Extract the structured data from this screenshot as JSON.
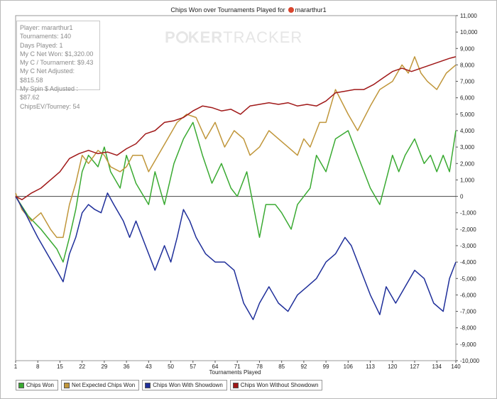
{
  "title": {
    "text": "Chips Won over Tournaments Played for",
    "player": "mararthur1"
  },
  "watermark": {
    "poker_p": "P",
    "poker_rest": "KER",
    "tracker": "TRACKER"
  },
  "info_box": [
    "Player: mararthur1",
    "Tournaments: 140",
    "Days Played: 1",
    "My C Net Won: $1,320.00",
    "My C / Tournament: $9.43",
    "My C Net Adjusted: $815.58",
    "My Spin $ Adjusted : $87.62",
    "ChipsEV/Tourney: 54"
  ],
  "colors": {
    "chips_won": "#3aaa32",
    "net_expected": "#c0963a",
    "with_showdown": "#1f2f9a",
    "without_showdown": "#a01818"
  },
  "chart_data": {
    "type": "line",
    "xlabel": "Tournaments Played",
    "ylabel": "",
    "xlim": [
      1,
      140
    ],
    "ylim": [
      -10000,
      11000
    ],
    "x_ticks": [
      1,
      8,
      15,
      22,
      29,
      36,
      43,
      50,
      57,
      64,
      71,
      78,
      85,
      92,
      99,
      106,
      113,
      120,
      127,
      134,
      140
    ],
    "y_ticks": [
      -10000,
      -9000,
      -8000,
      -7000,
      -6000,
      -5000,
      -4000,
      -3000,
      -2000,
      -1000,
      0,
      1000,
      2000,
      3000,
      4000,
      5000,
      6000,
      7000,
      8000,
      9000,
      10000,
      11000
    ],
    "y_tick_labels": [
      "-10,000",
      "-9,000",
      "-8,000",
      "-7,000",
      "-6,000",
      "-5,000",
      "-4,000",
      "-3,000",
      "-2,000",
      "-1,000",
      "0",
      "1,000",
      "2,000",
      "3,000",
      "4,000",
      "5,000",
      "6,000",
      "7,000",
      "8,000",
      "9,000",
      "10,000",
      "11,000"
    ],
    "series": [
      {
        "name": "Chips Won",
        "key": "chips_won",
        "points": [
          [
            1,
            0
          ],
          [
            5,
            -1200
          ],
          [
            9,
            -2000
          ],
          [
            14,
            -3200
          ],
          [
            16,
            -4000
          ],
          [
            18,
            -2500
          ],
          [
            20,
            -800
          ],
          [
            22,
            1500
          ],
          [
            24,
            2500
          ],
          [
            27,
            1800
          ],
          [
            29,
            3000
          ],
          [
            31,
            1500
          ],
          [
            34,
            500
          ],
          [
            36,
            2500
          ],
          [
            39,
            800
          ],
          [
            43,
            -500
          ],
          [
            45,
            1500
          ],
          [
            48,
            -500
          ],
          [
            51,
            2000
          ],
          [
            54,
            3500
          ],
          [
            57,
            4500
          ],
          [
            60,
            2500
          ],
          [
            63,
            800
          ],
          [
            66,
            2000
          ],
          [
            69,
            500
          ],
          [
            71,
            0
          ],
          [
            74,
            1500
          ],
          [
            78,
            -2500
          ],
          [
            80,
            -500
          ],
          [
            83,
            -500
          ],
          [
            85,
            -1000
          ],
          [
            88,
            -2000
          ],
          [
            90,
            -500
          ],
          [
            92,
            0
          ],
          [
            94,
            500
          ],
          [
            96,
            2500
          ],
          [
            99,
            1500
          ],
          [
            102,
            3500
          ],
          [
            106,
            4000
          ],
          [
            109,
            2500
          ],
          [
            113,
            500
          ],
          [
            116,
            -500
          ],
          [
            118,
            1000
          ],
          [
            120,
            2500
          ],
          [
            122,
            1500
          ],
          [
            124,
            2500
          ],
          [
            127,
            3500
          ],
          [
            130,
            2000
          ],
          [
            132,
            2500
          ],
          [
            134,
            1500
          ],
          [
            136,
            2500
          ],
          [
            138,
            1500
          ],
          [
            140,
            4000
          ]
        ]
      },
      {
        "name": "Net Expected Chips Won",
        "key": "net_expected",
        "points": [
          [
            1,
            200
          ],
          [
            3,
            -800
          ],
          [
            6,
            -1500
          ],
          [
            9,
            -1000
          ],
          [
            12,
            -2000
          ],
          [
            14,
            -2500
          ],
          [
            16,
            -2500
          ],
          [
            18,
            -500
          ],
          [
            20,
            800
          ],
          [
            22,
            2500
          ],
          [
            24,
            2000
          ],
          [
            27,
            2800
          ],
          [
            29,
            2500
          ],
          [
            31,
            1800
          ],
          [
            34,
            1500
          ],
          [
            36,
            1800
          ],
          [
            38,
            2500
          ],
          [
            41,
            2500
          ],
          [
            43,
            1500
          ],
          [
            46,
            2500
          ],
          [
            49,
            3500
          ],
          [
            52,
            4500
          ],
          [
            55,
            5000
          ],
          [
            58,
            4800
          ],
          [
            61,
            3500
          ],
          [
            64,
            4500
          ],
          [
            67,
            3000
          ],
          [
            70,
            4000
          ],
          [
            73,
            3500
          ],
          [
            75,
            2500
          ],
          [
            78,
            3000
          ],
          [
            81,
            4000
          ],
          [
            84,
            3500
          ],
          [
            87,
            3000
          ],
          [
            90,
            2500
          ],
          [
            92,
            3500
          ],
          [
            94,
            3000
          ],
          [
            97,
            4500
          ],
          [
            99,
            4500
          ],
          [
            102,
            6500
          ],
          [
            106,
            5000
          ],
          [
            109,
            4000
          ],
          [
            113,
            5500
          ],
          [
            116,
            6500
          ],
          [
            120,
            7000
          ],
          [
            123,
            8000
          ],
          [
            125,
            7500
          ],
          [
            127,
            8500
          ],
          [
            129,
            7500
          ],
          [
            131,
            7000
          ],
          [
            134,
            6500
          ],
          [
            137,
            7500
          ],
          [
            140,
            8000
          ]
        ]
      },
      {
        "name": "Chips Won With Showdown",
        "key": "with_showdown",
        "points": [
          [
            1,
            0
          ],
          [
            4,
            -1000
          ],
          [
            8,
            -2500
          ],
          [
            11,
            -3500
          ],
          [
            14,
            -4500
          ],
          [
            16,
            -5200
          ],
          [
            18,
            -3500
          ],
          [
            20,
            -2500
          ],
          [
            22,
            -1000
          ],
          [
            24,
            -500
          ],
          [
            26,
            -800
          ],
          [
            28,
            -1000
          ],
          [
            30,
            200
          ],
          [
            32,
            -500
          ],
          [
            35,
            -1500
          ],
          [
            37,
            -2500
          ],
          [
            39,
            -1500
          ],
          [
            42,
            -3000
          ],
          [
            45,
            -4500
          ],
          [
            48,
            -3000
          ],
          [
            50,
            -4000
          ],
          [
            52,
            -2500
          ],
          [
            54,
            -800
          ],
          [
            56,
            -1500
          ],
          [
            58,
            -2500
          ],
          [
            61,
            -3500
          ],
          [
            64,
            -4000
          ],
          [
            67,
            -4000
          ],
          [
            70,
            -4500
          ],
          [
            73,
            -6500
          ],
          [
            76,
            -7500
          ],
          [
            78,
            -6500
          ],
          [
            81,
            -5500
          ],
          [
            84,
            -6500
          ],
          [
            87,
            -7000
          ],
          [
            90,
            -6000
          ],
          [
            93,
            -5500
          ],
          [
            96,
            -5000
          ],
          [
            99,
            -4000
          ],
          [
            102,
            -3500
          ],
          [
            105,
            -2500
          ],
          [
            107,
            -3000
          ],
          [
            110,
            -4500
          ],
          [
            113,
            -6000
          ],
          [
            116,
            -7200
          ],
          [
            118,
            -5500
          ],
          [
            121,
            -6500
          ],
          [
            124,
            -5500
          ],
          [
            127,
            -4500
          ],
          [
            130,
            -5000
          ],
          [
            133,
            -6500
          ],
          [
            136,
            -7000
          ],
          [
            138,
            -5000
          ],
          [
            140,
            -4000
          ]
        ]
      },
      {
        "name": "Chips Won Without Showdown",
        "key": "without_showdown",
        "points": [
          [
            1,
            0
          ],
          [
            3,
            -200
          ],
          [
            6,
            200
          ],
          [
            9,
            500
          ],
          [
            12,
            1000
          ],
          [
            15,
            1500
          ],
          [
            18,
            2300
          ],
          [
            21,
            2600
          ],
          [
            24,
            2800
          ],
          [
            27,
            2600
          ],
          [
            30,
            2700
          ],
          [
            33,
            2500
          ],
          [
            36,
            2900
          ],
          [
            39,
            3200
          ],
          [
            42,
            3800
          ],
          [
            45,
            4000
          ],
          [
            48,
            4500
          ],
          [
            51,
            4600
          ],
          [
            54,
            4800
          ],
          [
            57,
            5200
          ],
          [
            60,
            5500
          ],
          [
            63,
            5400
          ],
          [
            66,
            5200
          ],
          [
            69,
            5300
          ],
          [
            72,
            5000
          ],
          [
            75,
            5500
          ],
          [
            78,
            5600
          ],
          [
            81,
            5700
          ],
          [
            84,
            5600
          ],
          [
            87,
            5700
          ],
          [
            90,
            5500
          ],
          [
            93,
            5600
          ],
          [
            96,
            5500
          ],
          [
            99,
            5800
          ],
          [
            102,
            6300
          ],
          [
            105,
            6400
          ],
          [
            108,
            6500
          ],
          [
            111,
            6500
          ],
          [
            114,
            6800
          ],
          [
            117,
            7200
          ],
          [
            120,
            7600
          ],
          [
            123,
            7800
          ],
          [
            126,
            7600
          ],
          [
            129,
            7800
          ],
          [
            132,
            8000
          ],
          [
            135,
            8200
          ],
          [
            138,
            8400
          ],
          [
            140,
            8500
          ]
        ]
      }
    ]
  }
}
